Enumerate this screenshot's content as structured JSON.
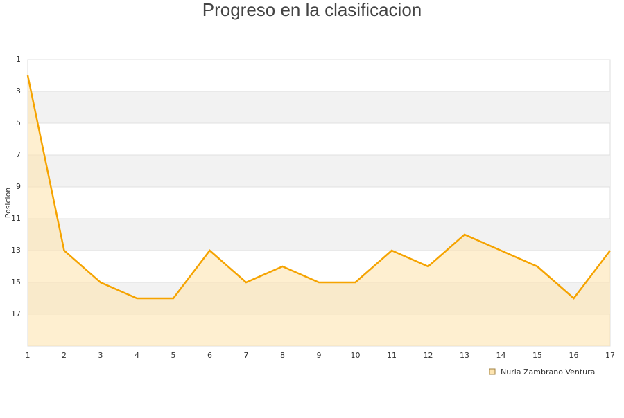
{
  "chart_data": {
    "type": "line",
    "title": "Progreso en la clasificacion",
    "y_label": "Posicion",
    "x": [
      1,
      2,
      3,
      4,
      5,
      6,
      7,
      8,
      9,
      10,
      11,
      12,
      13,
      14,
      15,
      16,
      17
    ],
    "series": [
      {
        "name": "Nuria Zambrano Ventura",
        "color": "#f5a300",
        "fill": "#fde4b0",
        "values": [
          2,
          13,
          15,
          16,
          16,
          13,
          15,
          14,
          15,
          15,
          13,
          14,
          12,
          13,
          14,
          16,
          13
        ]
      }
    ],
    "xlim": [
      1,
      17
    ],
    "xticks": [
      1,
      2,
      3,
      4,
      5,
      6,
      7,
      8,
      9,
      10,
      11,
      12,
      13,
      14,
      15,
      16,
      17
    ],
    "ylim": [
      1,
      19
    ],
    "yticks": [
      1,
      3,
      5,
      7,
      9,
      11,
      13,
      15,
      17
    ],
    "y_inverted": true,
    "grid": true,
    "legend": "bottom-right"
  }
}
